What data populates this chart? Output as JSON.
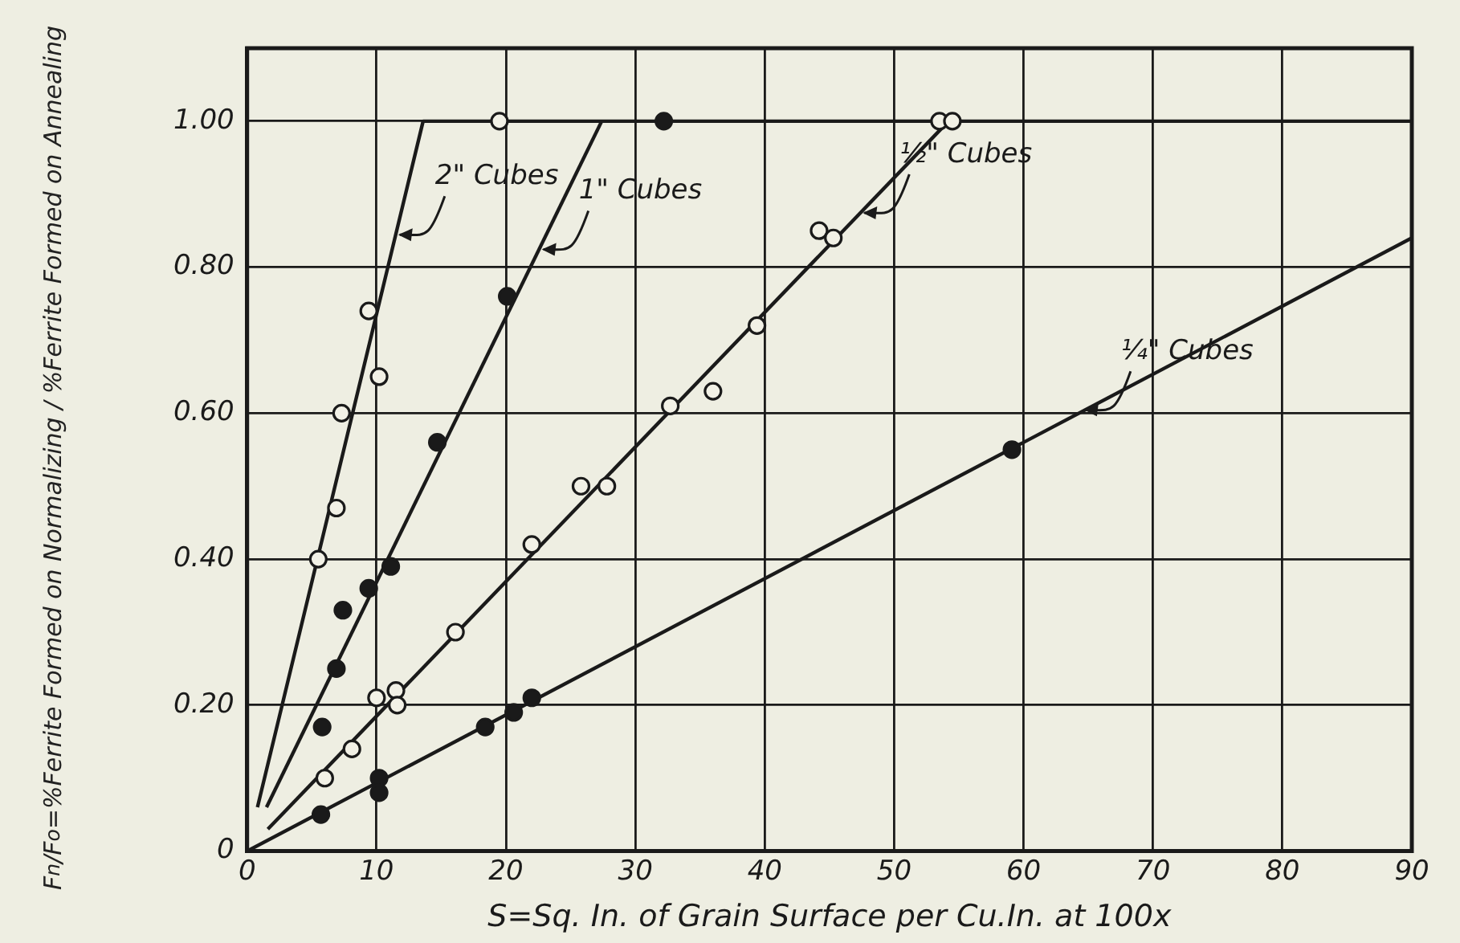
{
  "chart_data": {
    "type": "scatter",
    "xlabel": "S=Sq. In. of Grain Surface per Cu.In. at 100x",
    "ylabel": "F$_{n}$/F$_{o}$=%Ferrite Formed on Normalizing / %Ferrite Formed on Annealing",
    "xlim": [
      0,
      90
    ],
    "xticks": [
      0,
      10,
      20,
      30,
      40,
      50,
      60,
      70,
      80,
      90
    ],
    "ylim": [
      0,
      1.1
    ],
    "yticks": [
      0,
      {
        "value": 0.2,
        "label": "0.20"
      },
      {
        "value": 0.4,
        "label": "0.40"
      },
      {
        "value": 0.6,
        "label": "0.60"
      },
      {
        "value": 0.8,
        "label": "0.80"
      },
      {
        "value": 1.0,
        "label": "1.00"
      }
    ],
    "grid": true,
    "legend": false,
    "marker": "circle",
    "series": [
      {
        "color": "#f2f1e6",
        "x": [
          5.5,
          6.9,
          7.3,
          9.4,
          10.2,
          19.5
        ],
        "values": [
          0.4,
          0.47,
          0.6,
          0.74,
          0.65,
          1.0
        ]
      },
      {
        "color": "#1a1a1a",
        "x": [
          5.8,
          6.9,
          7.4,
          9.4,
          11.1,
          14.7,
          20.1,
          32.2
        ],
        "values": [
          0.17,
          0.25,
          0.33,
          0.36,
          0.39,
          0.56,
          0.76,
          1.0
        ]
      },
      {
        "color": "#f2f1e6",
        "x": [
          6.0,
          8.1,
          10.0,
          11.5,
          11.6,
          16.1,
          22.0,
          25.8,
          27.8,
          32.7,
          36.0,
          39.4,
          44.2,
          45.3,
          53.5,
          54.5
        ],
        "values": [
          0.1,
          0.14,
          0.21,
          0.22,
          0.2,
          0.3,
          0.42,
          0.5,
          0.5,
          0.61,
          0.63,
          0.72,
          0.85,
          0.84,
          1.0,
          1.0
        ]
      },
      {
        "color": "#1a1a1a",
        "x": [
          5.7,
          10.2,
          10.2,
          18.4,
          20.6,
          22.0,
          59.1
        ],
        "values": [
          0.05,
          0.1,
          0.08,
          0.17,
          0.19,
          0.21,
          0.55
        ]
      },
      {
        "type": "line",
        "color": "#1a1a1a",
        "marker": "none",
        "x": [
          0.8,
          13.6,
          90
        ],
        "values": [
          0.06,
          1.0,
          1.0
        ]
      },
      {
        "type": "line",
        "color": "#1a1a1a",
        "marker": "none",
        "x": [
          1.5,
          27.4
        ],
        "values": [
          0.06,
          1.0
        ]
      },
      {
        "type": "line",
        "color": "#1a1a1a",
        "marker": "none",
        "x": [
          1.6,
          54.2
        ],
        "values": [
          0.03,
          1.0
        ]
      },
      {
        "type": "line",
        "color": "#1a1a1a",
        "marker": "none",
        "x": [
          0,
          90
        ],
        "values": [
          0,
          0.84
        ]
      }
    ],
    "annotations": [
      {
        "text": "2\" Cubes",
        "x": 11.3,
        "y": 0.84
      },
      {
        "text": "1\" Cubes",
        "x": 22.4,
        "y": 0.82
      },
      {
        "text": "½\" Cubes",
        "x": 47.2,
        "y": 0.87
      },
      {
        "text": "¼\" Cubes",
        "x": 64.3,
        "y": 0.6
      }
    ]
  }
}
